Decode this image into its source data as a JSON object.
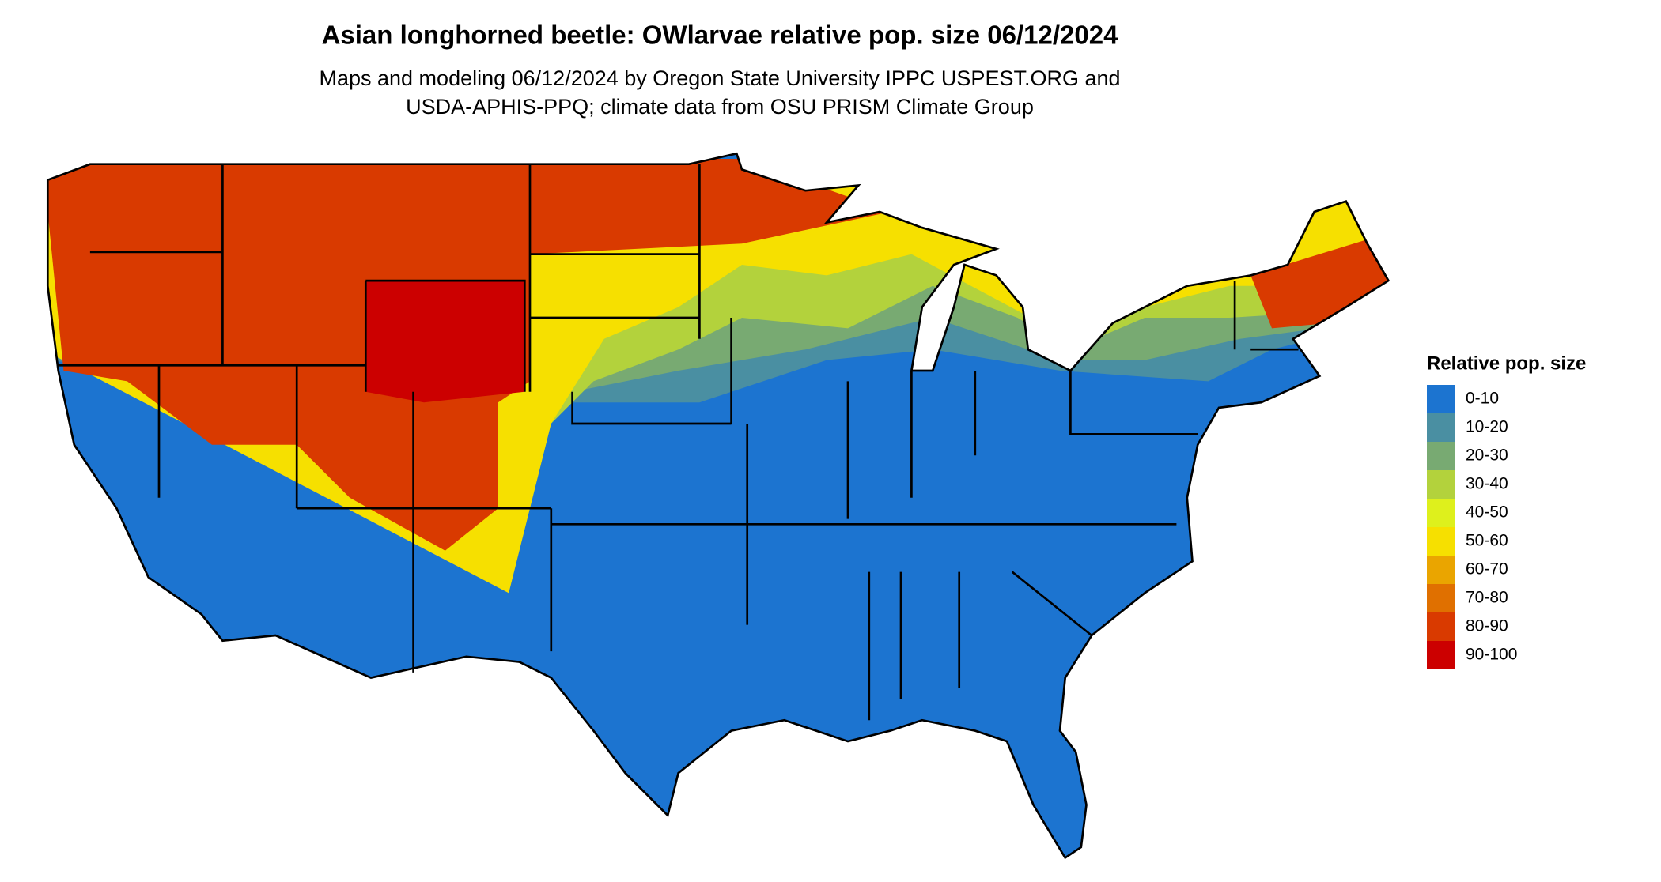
{
  "title": "Asian longhorned beetle: OWlarvae relative pop. size 06/12/2024",
  "subtitle": [
    "Maps and modeling 06/12/2024 by Oregon State University IPPC USPEST.ORG and",
    "USDA-APHIS-PPQ; climate data from OSU PRISM Climate Group"
  ],
  "legend": {
    "title": "Relative pop. size",
    "items": [
      {
        "label": "0-10",
        "color": "#1c74d0"
      },
      {
        "label": "10-20",
        "color": "#4a8fa2"
      },
      {
        "label": "20-30",
        "color": "#78aa72"
      },
      {
        "label": "30-40",
        "color": "#b3d23c"
      },
      {
        "label": "40-50",
        "color": "#def01c"
      },
      {
        "label": "50-60",
        "color": "#f6e000"
      },
      {
        "label": "60-70",
        "color": "#eaa500"
      },
      {
        "label": "70-80",
        "color": "#e07000"
      },
      {
        "label": "80-90",
        "color": "#d93a00"
      },
      {
        "label": "90-100",
        "color": "#cc0000"
      }
    ]
  }
}
